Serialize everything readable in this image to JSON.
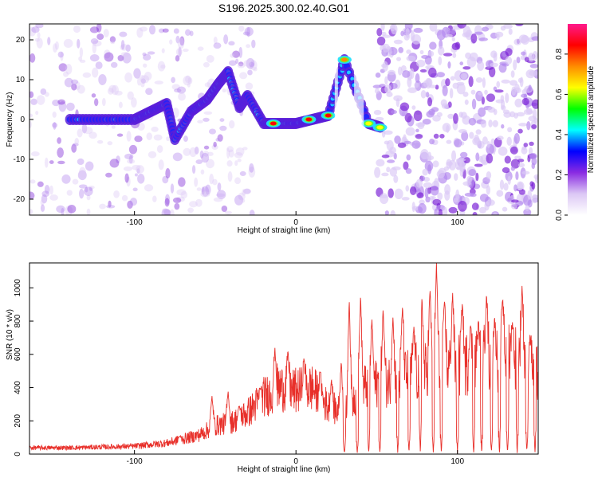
{
  "page": {
    "title": "S196.2025.300.02.40.G01"
  },
  "chart_data": [
    {
      "type": "heatmap",
      "title": "S196.2025.300.02.40.G01",
      "xlabel": "Height of straight line (km)",
      "ylabel": "Frequency (Hz)",
      "xlim": [
        -165,
        150
      ],
      "ylim": [
        -24,
        24
      ],
      "xticks": [
        -100,
        0,
        100
      ],
      "yticks": [
        -20,
        -10,
        0,
        10,
        20
      ],
      "colorbar": {
        "label": "Normalized spectral amplitude",
        "range": [
          0.0,
          0.95
        ],
        "ticks": [
          0.0,
          0.2,
          0.4,
          0.6,
          0.8
        ],
        "colormap": [
          "#ffffff",
          "#dcc8f5",
          "#8a2be2",
          "#0000ff",
          "#00ffff",
          "#00ff00",
          "#ffff00",
          "#ff8c00",
          "#ff0000",
          "#ff1a8c"
        ]
      },
      "ridge": [
        {
          "x": -140,
          "y": 0
        },
        {
          "x": -120,
          "y": 0
        },
        {
          "x": -100,
          "y": 0
        },
        {
          "x": -90,
          "y": 2
        },
        {
          "x": -80,
          "y": 4
        },
        {
          "x": -75,
          "y": -5
        },
        {
          "x": -65,
          "y": 2
        },
        {
          "x": -55,
          "y": 5
        },
        {
          "x": -48,
          "y": 9
        },
        {
          "x": -42,
          "y": 12
        },
        {
          "x": -35,
          "y": 3
        },
        {
          "x": -30,
          "y": 6
        },
        {
          "x": -20,
          "y": -1
        },
        {
          "x": -10,
          "y": -1
        },
        {
          "x": 0,
          "y": -1
        },
        {
          "x": 10,
          "y": 0
        },
        {
          "x": 20,
          "y": 1
        },
        {
          "x": 30,
          "y": 15
        },
        {
          "x": 45,
          "y": -1
        },
        {
          "x": 53,
          "y": -2
        }
      ],
      "strong_peaks": [
        {
          "x": -14,
          "y": -1,
          "value": 0.85
        },
        {
          "x": 8,
          "y": 0,
          "value": 0.9
        },
        {
          "x": 20,
          "y": 1,
          "value": 0.9
        },
        {
          "x": 30,
          "y": 15,
          "value": 0.8
        },
        {
          "x": 45,
          "y": -1,
          "value": 0.7
        },
        {
          "x": 52,
          "y": -2,
          "value": 0.7
        }
      ]
    },
    {
      "type": "line",
      "xlabel": "Height of straight line (km)",
      "ylabel": "SNR (10 * v/v)",
      "xlim": [
        -165,
        150
      ],
      "ylim": [
        0,
        1150
      ],
      "xticks": [
        -100,
        0,
        100
      ],
      "yticks": [
        0,
        200,
        400,
        600,
        800,
        1000
      ],
      "color": "#e8302a",
      "envelope": [
        {
          "x": -165,
          "y": 40
        },
        {
          "x": -140,
          "y": 40
        },
        {
          "x": -120,
          "y": 45
        },
        {
          "x": -100,
          "y": 50
        },
        {
          "x": -80,
          "y": 70
        },
        {
          "x": -60,
          "y": 120
        },
        {
          "x": -50,
          "y": 180
        },
        {
          "x": -40,
          "y": 200
        },
        {
          "x": -30,
          "y": 260
        },
        {
          "x": -20,
          "y": 360
        },
        {
          "x": -10,
          "y": 420
        },
        {
          "x": 0,
          "y": 400
        },
        {
          "x": 10,
          "y": 420
        },
        {
          "x": 20,
          "y": 300
        },
        {
          "x": 30,
          "y": 260
        },
        {
          "x": 40,
          "y": 420
        },
        {
          "x": 60,
          "y": 470
        },
        {
          "x": 80,
          "y": 520
        },
        {
          "x": 100,
          "y": 560
        },
        {
          "x": 120,
          "y": 600
        },
        {
          "x": 140,
          "y": 620
        },
        {
          "x": 150,
          "y": 500
        }
      ],
      "peaks": [
        {
          "x": -72,
          "y": 110
        },
        {
          "x": -52,
          "y": 350
        },
        {
          "x": -42,
          "y": 380
        },
        {
          "x": -35,
          "y": 290
        },
        {
          "x": -22,
          "y": 400
        },
        {
          "x": -13,
          "y": 640
        },
        {
          "x": -5,
          "y": 620
        },
        {
          "x": 5,
          "y": 580
        },
        {
          "x": 15,
          "y": 500
        },
        {
          "x": 22,
          "y": 450
        },
        {
          "x": 28,
          "y": 560
        },
        {
          "x": 33,
          "y": 940
        },
        {
          "x": 40,
          "y": 960
        },
        {
          "x": 47,
          "y": 820
        },
        {
          "x": 54,
          "y": 880
        },
        {
          "x": 60,
          "y": 830
        },
        {
          "x": 66,
          "y": 900
        },
        {
          "x": 73,
          "y": 770
        },
        {
          "x": 78,
          "y": 950
        },
        {
          "x": 83,
          "y": 1000
        },
        {
          "x": 87,
          "y": 1150
        },
        {
          "x": 92,
          "y": 940
        },
        {
          "x": 97,
          "y": 980
        },
        {
          "x": 103,
          "y": 920
        },
        {
          "x": 108,
          "y": 780
        },
        {
          "x": 113,
          "y": 800
        },
        {
          "x": 118,
          "y": 980
        },
        {
          "x": 123,
          "y": 820
        },
        {
          "x": 128,
          "y": 940
        },
        {
          "x": 134,
          "y": 800
        },
        {
          "x": 140,
          "y": 1020
        },
        {
          "x": 145,
          "y": 720
        }
      ],
      "dips": [
        {
          "x": 30,
          "y": 5
        },
        {
          "x": 38,
          "y": 5
        },
        {
          "x": 45,
          "y": 5
        },
        {
          "x": 52,
          "y": 5
        },
        {
          "x": 63,
          "y": 5
        },
        {
          "x": 70,
          "y": 5
        },
        {
          "x": 77,
          "y": 5
        },
        {
          "x": 85,
          "y": 5
        },
        {
          "x": 90,
          "y": 5
        },
        {
          "x": 100,
          "y": 5
        },
        {
          "x": 110,
          "y": 5
        },
        {
          "x": 115,
          "y": 5
        },
        {
          "x": 121,
          "y": 5
        },
        {
          "x": 126,
          "y": 5
        },
        {
          "x": 131,
          "y": 5
        },
        {
          "x": 137,
          "y": 5
        },
        {
          "x": 143,
          "y": 5
        },
        {
          "x": 148,
          "y": 5
        }
      ]
    }
  ]
}
